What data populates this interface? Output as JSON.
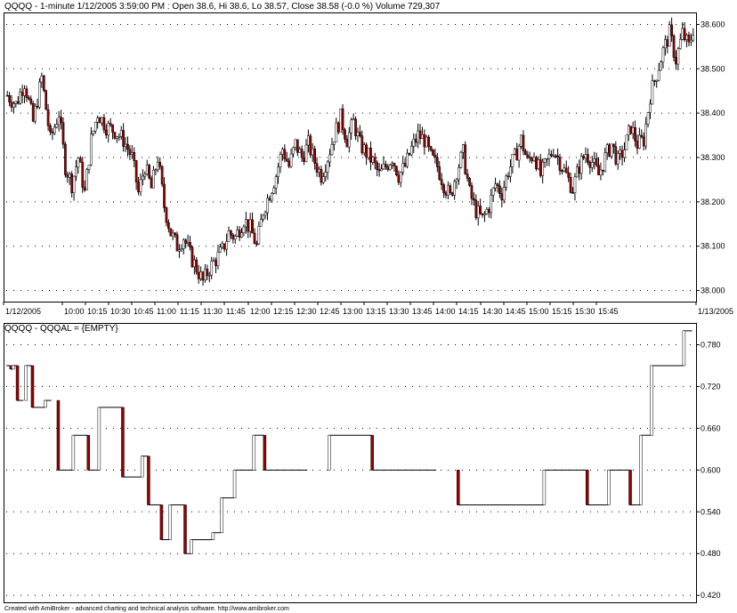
{
  "price_pane": {
    "title": "QQQQ - 1-minute 1/12/2005 3:59:00 PM : Open 38.6, Hi 38.6, Lo 38.57, Close 38.58 (-0.0 %) Volume 729,307"
  },
  "indicator_pane": {
    "title": "QQQQ - QQQAL = {EMPTY}"
  },
  "footer": "Created with AmiBroker - advanced charting and technical analysis software. http://www.amibroker.com",
  "colors": {
    "up": "#ffffff",
    "down": "#990000",
    "outline": "#000000",
    "grid": "#000000"
  },
  "chart_data": [
    {
      "type": "candlestick",
      "title": "QQQQ - 1-minute 1/12/2005 3:59:00 PM : Open 38.6, Hi 38.6, Lo 38.57, Close 38.58 (-0.0 %) Volume 729,307",
      "x_tick_labels": [
        "1/12/2005",
        "10:00",
        "10:15",
        "10:30",
        "10:45",
        "11:00",
        "11:15",
        "11:30",
        "11:45",
        "12:00",
        "12:15",
        "12:30",
        "12:45",
        "13:00",
        "13:15",
        "13:30",
        "13:45",
        "14:00",
        "14:15",
        "14:30",
        "14:45",
        "15:00",
        "15:15",
        "15:30",
        "15:45",
        "1/13/2005"
      ],
      "y_tick_labels": [
        "38.000",
        "38.100",
        "38.200",
        "38.300",
        "38.400",
        "38.500",
        "38.600"
      ],
      "ylim": [
        37.975,
        38.625
      ],
      "grid": true,
      "trajectory": [
        [
          0,
          38.44
        ],
        [
          4,
          38.42
        ],
        [
          8,
          38.47
        ],
        [
          12,
          38.38
        ],
        [
          16,
          38.48
        ],
        [
          20,
          38.34
        ],
        [
          24,
          38.4
        ],
        [
          27,
          38.28
        ],
        [
          30,
          38.24
        ],
        [
          33,
          38.3
        ],
        [
          36,
          38.22
        ],
        [
          39,
          38.34
        ],
        [
          42,
          38.4
        ],
        [
          46,
          38.37
        ],
        [
          50,
          38.36
        ],
        [
          54,
          38.34
        ],
        [
          58,
          38.3
        ],
        [
          61,
          38.22
        ],
        [
          64,
          38.28
        ],
        [
          67,
          38.23
        ],
        [
          70,
          38.3
        ],
        [
          73,
          38.19
        ],
        [
          76,
          38.13
        ],
        [
          79,
          38.1
        ],
        [
          82,
          38.12
        ],
        [
          85,
          38.08
        ],
        [
          88,
          38.05
        ],
        [
          91,
          38.02
        ],
        [
          94,
          38.05
        ],
        [
          97,
          38.07
        ],
        [
          100,
          38.09
        ],
        [
          103,
          38.13
        ],
        [
          106,
          38.12
        ],
        [
          110,
          38.16
        ],
        [
          113,
          38.14
        ],
        [
          116,
          38.1
        ],
        [
          119,
          38.18
        ],
        [
          122,
          38.22
        ],
        [
          125,
          38.26
        ],
        [
          128,
          38.32
        ],
        [
          131,
          38.28
        ],
        [
          134,
          38.33
        ],
        [
          137,
          38.3
        ],
        [
          140,
          38.33
        ],
        [
          143,
          38.29
        ],
        [
          146,
          38.26
        ],
        [
          149,
          38.3
        ],
        [
          152,
          38.35
        ],
        [
          155,
          38.39
        ],
        [
          158,
          38.34
        ],
        [
          161,
          38.38
        ],
        [
          164,
          38.33
        ],
        [
          167,
          38.31
        ],
        [
          170,
          38.29
        ],
        [
          173,
          38.26
        ],
        [
          176,
          38.28
        ],
        [
          179,
          38.3
        ],
        [
          182,
          38.26
        ],
        [
          185,
          38.28
        ],
        [
          188,
          38.32
        ],
        [
          191,
          38.35
        ],
        [
          194,
          38.34
        ],
        [
          197,
          38.3
        ],
        [
          200,
          38.28
        ],
        [
          203,
          38.24
        ],
        [
          206,
          38.21
        ],
        [
          209,
          38.27
        ],
        [
          212,
          38.31
        ],
        [
          215,
          38.22
        ],
        [
          218,
          38.18
        ],
        [
          221,
          38.16
        ],
        [
          224,
          38.19
        ],
        [
          227,
          38.24
        ],
        [
          230,
          38.22
        ],
        [
          233,
          38.27
        ],
        [
          236,
          38.3
        ],
        [
          239,
          38.34
        ],
        [
          242,
          38.29
        ],
        [
          245,
          38.31
        ],
        [
          248,
          38.26
        ],
        [
          251,
          38.29
        ],
        [
          254,
          38.32
        ],
        [
          257,
          38.29
        ],
        [
          260,
          38.26
        ],
        [
          263,
          38.23
        ],
        [
          266,
          38.28
        ],
        [
          269,
          38.31
        ],
        [
          272,
          38.29
        ],
        [
          275,
          38.26
        ],
        [
          278,
          38.3
        ],
        [
          281,
          38.33
        ],
        [
          284,
          38.29
        ],
        [
          287,
          38.32
        ],
        [
          290,
          38.37
        ],
        [
          293,
          38.33
        ],
        [
          296,
          38.34
        ],
        [
          299,
          38.44
        ],
        [
          302,
          38.49
        ],
        [
          305,
          38.54
        ],
        [
          308,
          38.58
        ],
        [
          311,
          38.52
        ],
        [
          314,
          38.58
        ],
        [
          317,
          38.55
        ],
        [
          319,
          38.59
        ]
      ],
      "candle_count": 320
    },
    {
      "type": "bar",
      "title": "QQQQ - QQQAL = {EMPTY}",
      "y_tick_labels": [
        "0.420",
        "0.480",
        "0.540",
        "0.600",
        "0.660",
        "0.720",
        "0.780"
      ],
      "ylim": [
        0.41,
        0.81
      ],
      "grid": true,
      "segments": [
        [
          0,
          2,
          0.75
        ],
        [
          2,
          3,
          0.745
        ],
        [
          3,
          5,
          0.75
        ],
        [
          5,
          8,
          0.7
        ],
        [
          9,
          12,
          0.75
        ],
        [
          12,
          18,
          0.69
        ],
        [
          18,
          21,
          0.7
        ],
        [
          24,
          31,
          0.6
        ],
        [
          31,
          38,
          0.65
        ],
        [
          38,
          43,
          0.6
        ],
        [
          43,
          54,
          0.69
        ],
        [
          54,
          63,
          0.59
        ],
        [
          63,
          66,
          0.62
        ],
        [
          66,
          72,
          0.55
        ],
        [
          72,
          76,
          0.5
        ],
        [
          76,
          83,
          0.55
        ],
        [
          83,
          86,
          0.48
        ],
        [
          86,
          96,
          0.5
        ],
        [
          96,
          100,
          0.51
        ],
        [
          100,
          106,
          0.56
        ],
        [
          106,
          115,
          0.6
        ],
        [
          115,
          120,
          0.65
        ],
        [
          120,
          140,
          0.6
        ],
        [
          150,
          170,
          0.65
        ],
        [
          170,
          200,
          0.6
        ],
        [
          210,
          250,
          0.55
        ],
        [
          250,
          270,
          0.6
        ],
        [
          270,
          280,
          0.55
        ],
        [
          280,
          290,
          0.6
        ],
        [
          290,
          295,
          0.55
        ],
        [
          295,
          300,
          0.65
        ],
        [
          300,
          315,
          0.75
        ],
        [
          315,
          319,
          0.8
        ]
      ]
    }
  ]
}
